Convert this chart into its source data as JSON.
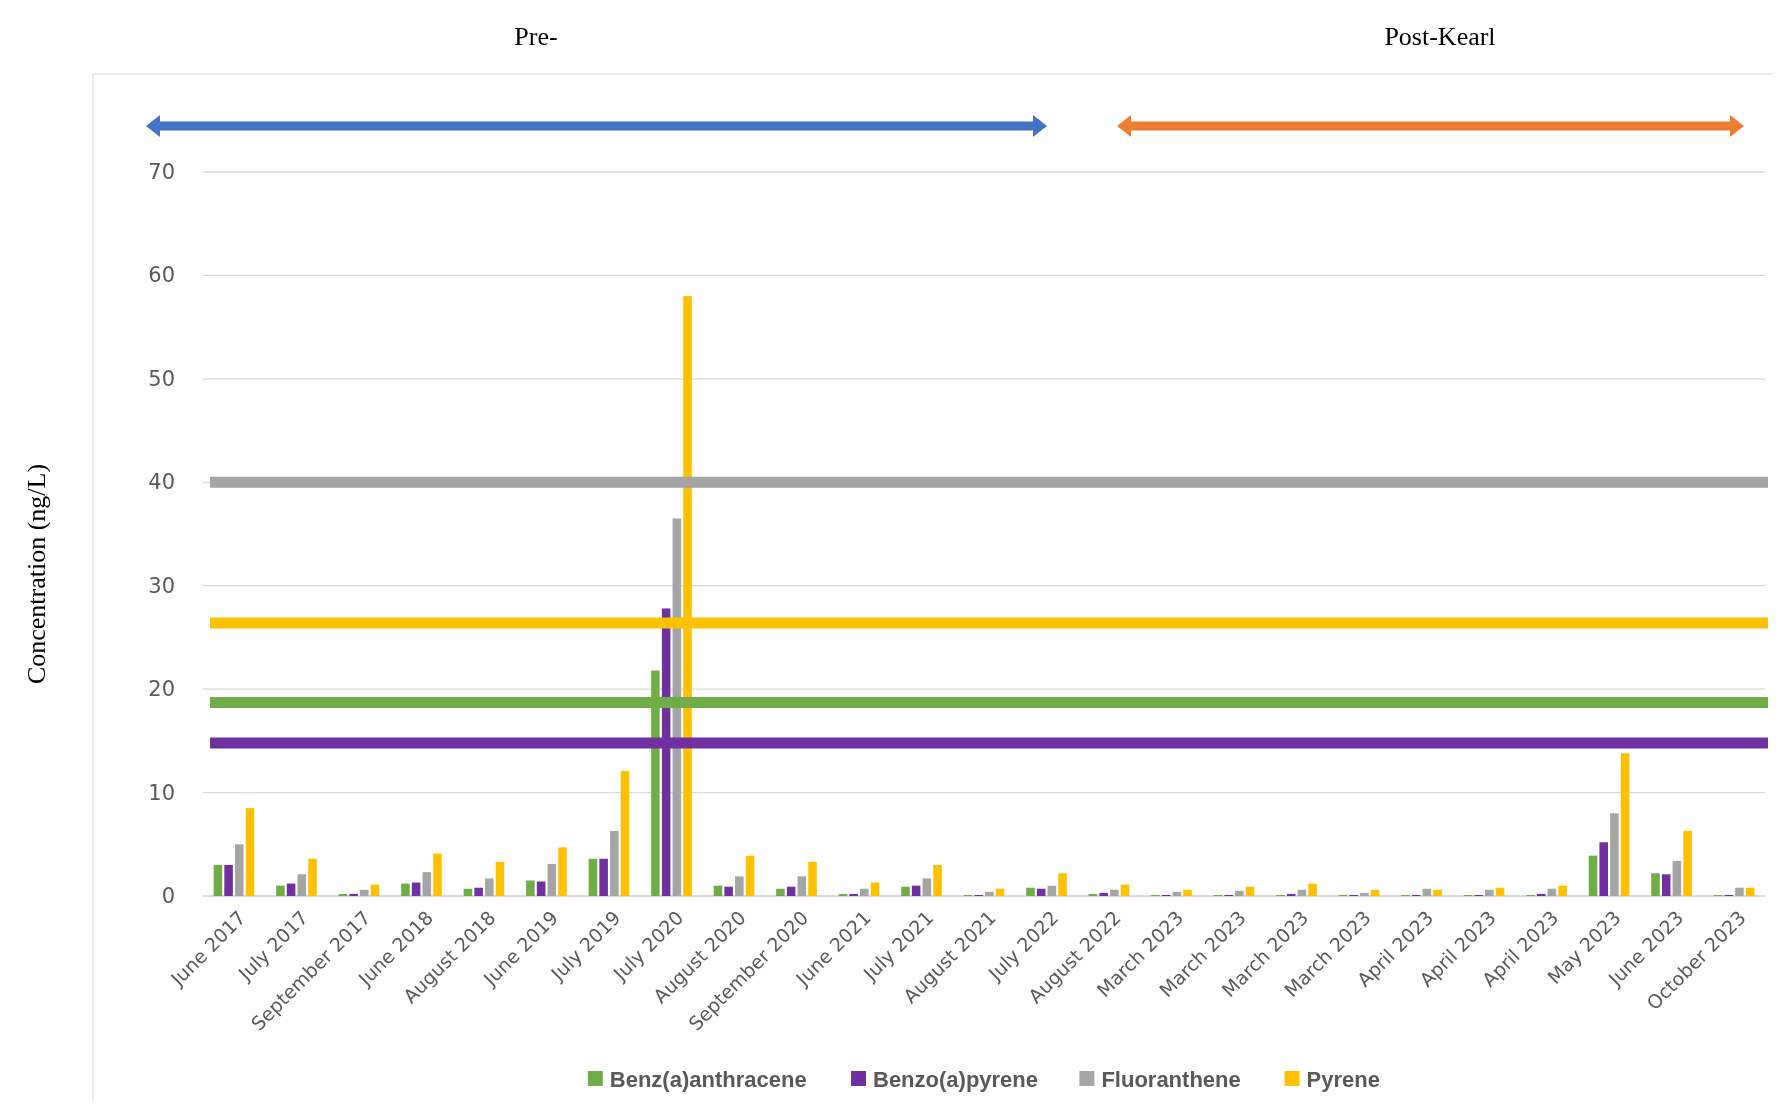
{
  "chart_data": {
    "type": "bar",
    "ylabel": "Concentration (ng/L)",
    "annotations": [
      "Pre-",
      "Post-Kearl"
    ],
    "categories": [
      "June 2017",
      "July 2017",
      "September 2017",
      "June 2018",
      "August 2018",
      "June 2019",
      "July 2019",
      "July 2020",
      "August 2020",
      "September 2020",
      "June 2021",
      "July 2021",
      "August 2021",
      "July 2022",
      "August 2022",
      "March 2023",
      "March 2023",
      "March 2023",
      "March 2023",
      "April 2023",
      "April 2023",
      "April 2023",
      "May 2023",
      "June 2023",
      "October 2023"
    ],
    "series": [
      {
        "name": "Benz(a)anthracene",
        "color": "#70ad47",
        "values": [
          3.0,
          1.0,
          0.2,
          1.2,
          0.7,
          1.5,
          3.6,
          21.8,
          1.0,
          0.7,
          0.2,
          0.9,
          0.1,
          0.8,
          0.2,
          0.1,
          0.1,
          0.1,
          0.1,
          0.1,
          0.1,
          0.1,
          3.9,
          2.2,
          0.1
        ]
      },
      {
        "name": "Benzo(a)pyrene",
        "color": "#7030a0",
        "values": [
          3.0,
          1.2,
          0.2,
          1.3,
          0.8,
          1.4,
          3.6,
          27.8,
          0.9,
          0.9,
          0.2,
          1.0,
          0.1,
          0.7,
          0.3,
          0.1,
          0.1,
          0.2,
          0.1,
          0.1,
          0.1,
          0.2,
          5.2,
          2.1,
          0.1
        ]
      },
      {
        "name": "Fluoranthene",
        "color": "#a5a5a5",
        "values": [
          5.0,
          2.1,
          0.6,
          2.3,
          1.7,
          3.1,
          6.3,
          36.5,
          1.9,
          1.9,
          0.7,
          1.7,
          0.4,
          1.0,
          0.6,
          0.4,
          0.5,
          0.6,
          0.3,
          0.7,
          0.6,
          0.7,
          8.0,
          3.4,
          0.8
        ]
      },
      {
        "name": "Pyrene",
        "color": "#ffc000",
        "values": [
          8.5,
          3.6,
          1.1,
          4.1,
          3.3,
          4.7,
          12.1,
          58.0,
          3.9,
          3.3,
          1.3,
          3.0,
          0.7,
          2.2,
          1.1,
          0.6,
          0.9,
          1.2,
          0.6,
          0.6,
          0.8,
          1.0,
          13.8,
          6.3,
          0.8
        ]
      }
    ],
    "ylim": [
      0,
      70
    ],
    "yticks": [
      0,
      10,
      20,
      30,
      40,
      50,
      60,
      70
    ],
    "grid": "y",
    "legend": "bottom",
    "ref_lines": [
      {
        "axis": "y",
        "value": 40,
        "color": "#a5a5a5"
      },
      {
        "axis": "y",
        "value": 26.4,
        "color": "#ffc000"
      },
      {
        "axis": "y",
        "value": 18.7,
        "color": "#70ad47"
      },
      {
        "axis": "y",
        "value": 14.8,
        "color": "#7030a0"
      }
    ]
  }
}
